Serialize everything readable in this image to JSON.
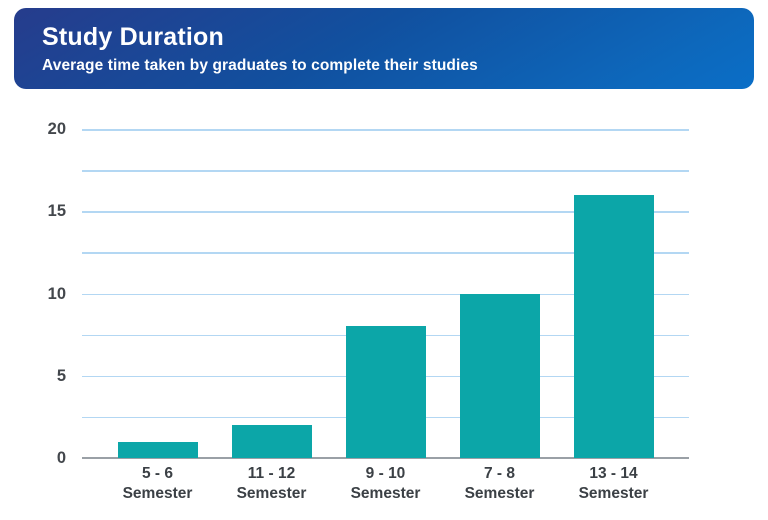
{
  "header": {
    "title": "Study Duration",
    "subtitle": "Average time taken by graduates to complete their studies"
  },
  "chart_data": {
    "type": "bar",
    "title": "Study Duration",
    "subtitle": "Average time taken by graduates to complete their studies",
    "categories": [
      "5 - 6 Semester",
      "11 - 12 Semester",
      "9 - 10 Semester",
      "7 - 8 Semester",
      "13 - 14 Semester"
    ],
    "tick_labels": [
      "5 - 6\nSemester",
      "11 - 12\nSemester",
      "9 - 10\nSemester",
      "7 - 8\nSemester",
      "13 - 14\nSemester"
    ],
    "values": [
      1,
      2,
      8,
      10,
      16
    ],
    "xlabel": "",
    "ylabel": "",
    "ylim": [
      0,
      20
    ],
    "yticks": [
      0,
      5,
      10,
      15,
      20
    ],
    "gridline_step": 2.5,
    "grid": true,
    "legend": false,
    "colors": {
      "bar": "#0ca6a8",
      "gridline": "#b3d7f3",
      "axis_line": "#9aa0a6",
      "y_tick_label": "#43474c",
      "x_tick_label": "#3b4045",
      "header_gradient_start": "#263c8c",
      "header_gradient_end": "#0a6ec7",
      "header_text": "#ffffff"
    }
  }
}
